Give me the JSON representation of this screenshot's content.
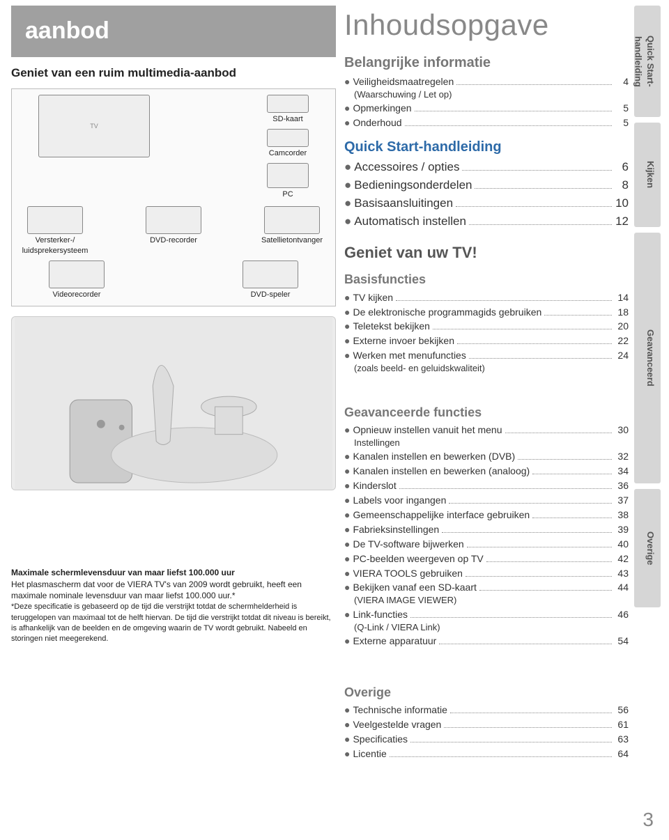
{
  "colors": {
    "header_bg": "#a0a0a0",
    "header_fg": "#ffffff",
    "title_gray": "#888888",
    "tab_bg": "#d6d6d6"
  },
  "left": {
    "header": "aanbod",
    "subhead": "Geniet van een ruim multimedia-aanbod",
    "devices": {
      "sdkaart": "SD-kaart",
      "camcorder": "Camcorder",
      "pc": "PC",
      "versterker": "Versterker-/\nluidsprekersysteem",
      "dvdrec": "DVD-recorder",
      "sat": "Satellietontvanger",
      "vcr": "Videorecorder",
      "dvdspeler": "DVD-speler"
    },
    "footnote": {
      "head": "Maximale schermlevensduur van maar liefst 100.000 uur",
      "body": "Het plasmascherm dat voor de VIERA TV's van 2009 wordt gebruikt, heeft een maximale nominale levensduur van maar liefst 100.000 uur.*",
      "small": "*Deze specificatie is gebaseerd op de tijd die verstrijkt totdat de schermhelderheid is teruggelopen van maximaal tot de helft hiervan. De tijd die verstrijkt totdat dit niveau is bereikt, is afhankelijk van de beelden en de omgeving waarin de TV wordt gebruikt. Nabeeld en storingen niet meegerekend."
    }
  },
  "toc": {
    "title": "Inhoudsopgave",
    "s1_head": "Belangrijke informatie",
    "s1": [
      {
        "label": "Veiligheidsmaatregelen",
        "sub": "(Waarschuwing / Let op)",
        "page": 4
      },
      {
        "label": "Opmerkingen",
        "page": 5
      },
      {
        "label": "Onderhoud",
        "page": 5
      }
    ],
    "s2_head": "Quick Start-handleiding",
    "s2": [
      {
        "label": "Accessoires / opties",
        "page": 6
      },
      {
        "label": "Bedieningsonderdelen",
        "page": 8
      },
      {
        "label": "Basisaansluitingen",
        "page": 10
      },
      {
        "label": "Automatisch instellen",
        "page": 12
      }
    ],
    "geniet_head": "Geniet van uw TV!",
    "s3_head": "Basisfuncties",
    "s3": [
      {
        "label": "TV kijken",
        "page": 14
      },
      {
        "label": "De elektronische programmagids gebruiken",
        "page": 18
      },
      {
        "label": "Teletekst bekijken",
        "page": 20
      },
      {
        "label": "Externe invoer bekijken",
        "page": 22
      },
      {
        "label": "Werken met menufuncties",
        "sub": "(zoals beeld- en geluidskwaliteit)",
        "page": 24
      }
    ],
    "s4_head": "Geavanceerde functies",
    "s4": [
      {
        "label": "Opnieuw instellen vanuit het menu",
        "sub": "Instellingen",
        "page": 30
      },
      {
        "label": "Kanalen instellen en bewerken (DVB)",
        "page": 32
      },
      {
        "label": "Kanalen instellen en bewerken (analoog)",
        "page": 34
      },
      {
        "label": "Kinderslot",
        "page": 36
      },
      {
        "label": "Labels voor ingangen",
        "page": 37
      },
      {
        "label": "Gemeenschappelijke interface gebruiken",
        "page": 38
      },
      {
        "label": "Fabrieksinstellingen",
        "page": 39
      },
      {
        "label": "De TV-software bijwerken",
        "page": 40
      },
      {
        "label": "PC-beelden weergeven op TV",
        "page": 42
      },
      {
        "label": "VIERA TOOLS gebruiken",
        "page": 43
      },
      {
        "label": "Bekijken vanaf een SD-kaart",
        "sub": "(VIERA IMAGE VIEWER)",
        "page": 44
      },
      {
        "label": "Link-functies",
        "sub": "(Q-Link / VIERA Link)",
        "page": 46
      },
      {
        "label": "Externe apparatuur",
        "page": 54
      }
    ],
    "s5_head": "Overige",
    "s5": [
      {
        "label": "Technische informatie",
        "page": 56
      },
      {
        "label": "Veelgestelde vragen",
        "page": 61
      },
      {
        "label": "Specificaties",
        "page": 63
      },
      {
        "label": "Licentie",
        "page": 64
      }
    ]
  },
  "tabs": {
    "t1": "Quick Start-\nhandleiding",
    "t2": "Kijken",
    "t3": "Geavanceerd",
    "t4": "Overige"
  },
  "page_number": "3"
}
